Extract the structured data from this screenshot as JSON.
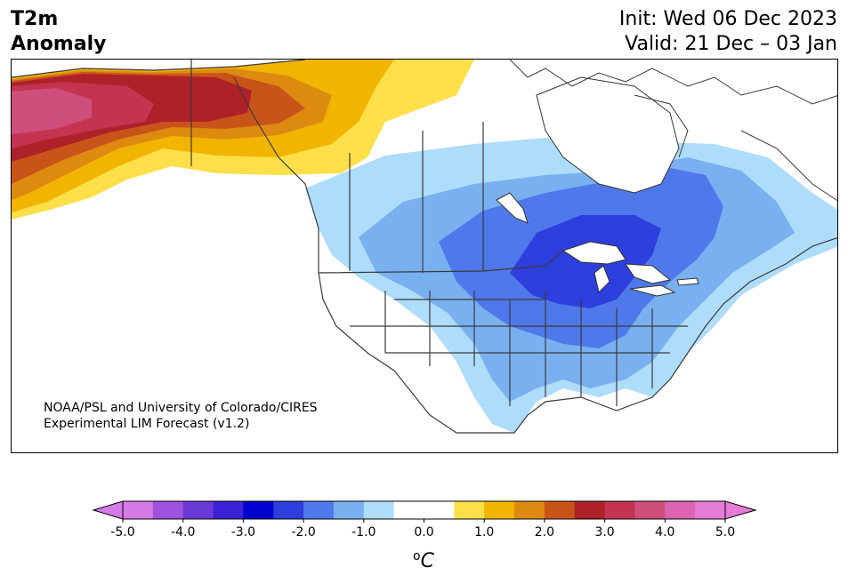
{
  "header": {
    "title_line1": "T2m",
    "title_line2": "Anomaly",
    "init": "Init: Wed 06 Dec 2023",
    "valid": "Valid: 21 Dec – 03 Jan"
  },
  "credit": {
    "line1": "NOAA/PSL and University of Colorado/CIRES",
    "line2": "Experimental LIM Forecast (v1.2)"
  },
  "colorbar": {
    "ticks": [
      "-5.0",
      "-4.0",
      "-3.0",
      "-2.0",
      "-1.0",
      "0.0",
      "1.0",
      "2.0",
      "3.0",
      "4.0",
      "5.0"
    ],
    "unit_sup": "o",
    "unit": "C",
    "colors": [
      "#d67ae8",
      "#9f52de",
      "#6a3ad9",
      "#3a21d6",
      "#0000cd",
      "#2d3fdc",
      "#4f78ea",
      "#79b0f0",
      "#aedcfb",
      "#ffffff",
      "#ffffff",
      "#fddf4a",
      "#f1b500",
      "#dd8a10",
      "#c9541a",
      "#ad2128",
      "#c23450",
      "#cf4f7c",
      "#dc62b2",
      "#e77cd8"
    ]
  }
}
